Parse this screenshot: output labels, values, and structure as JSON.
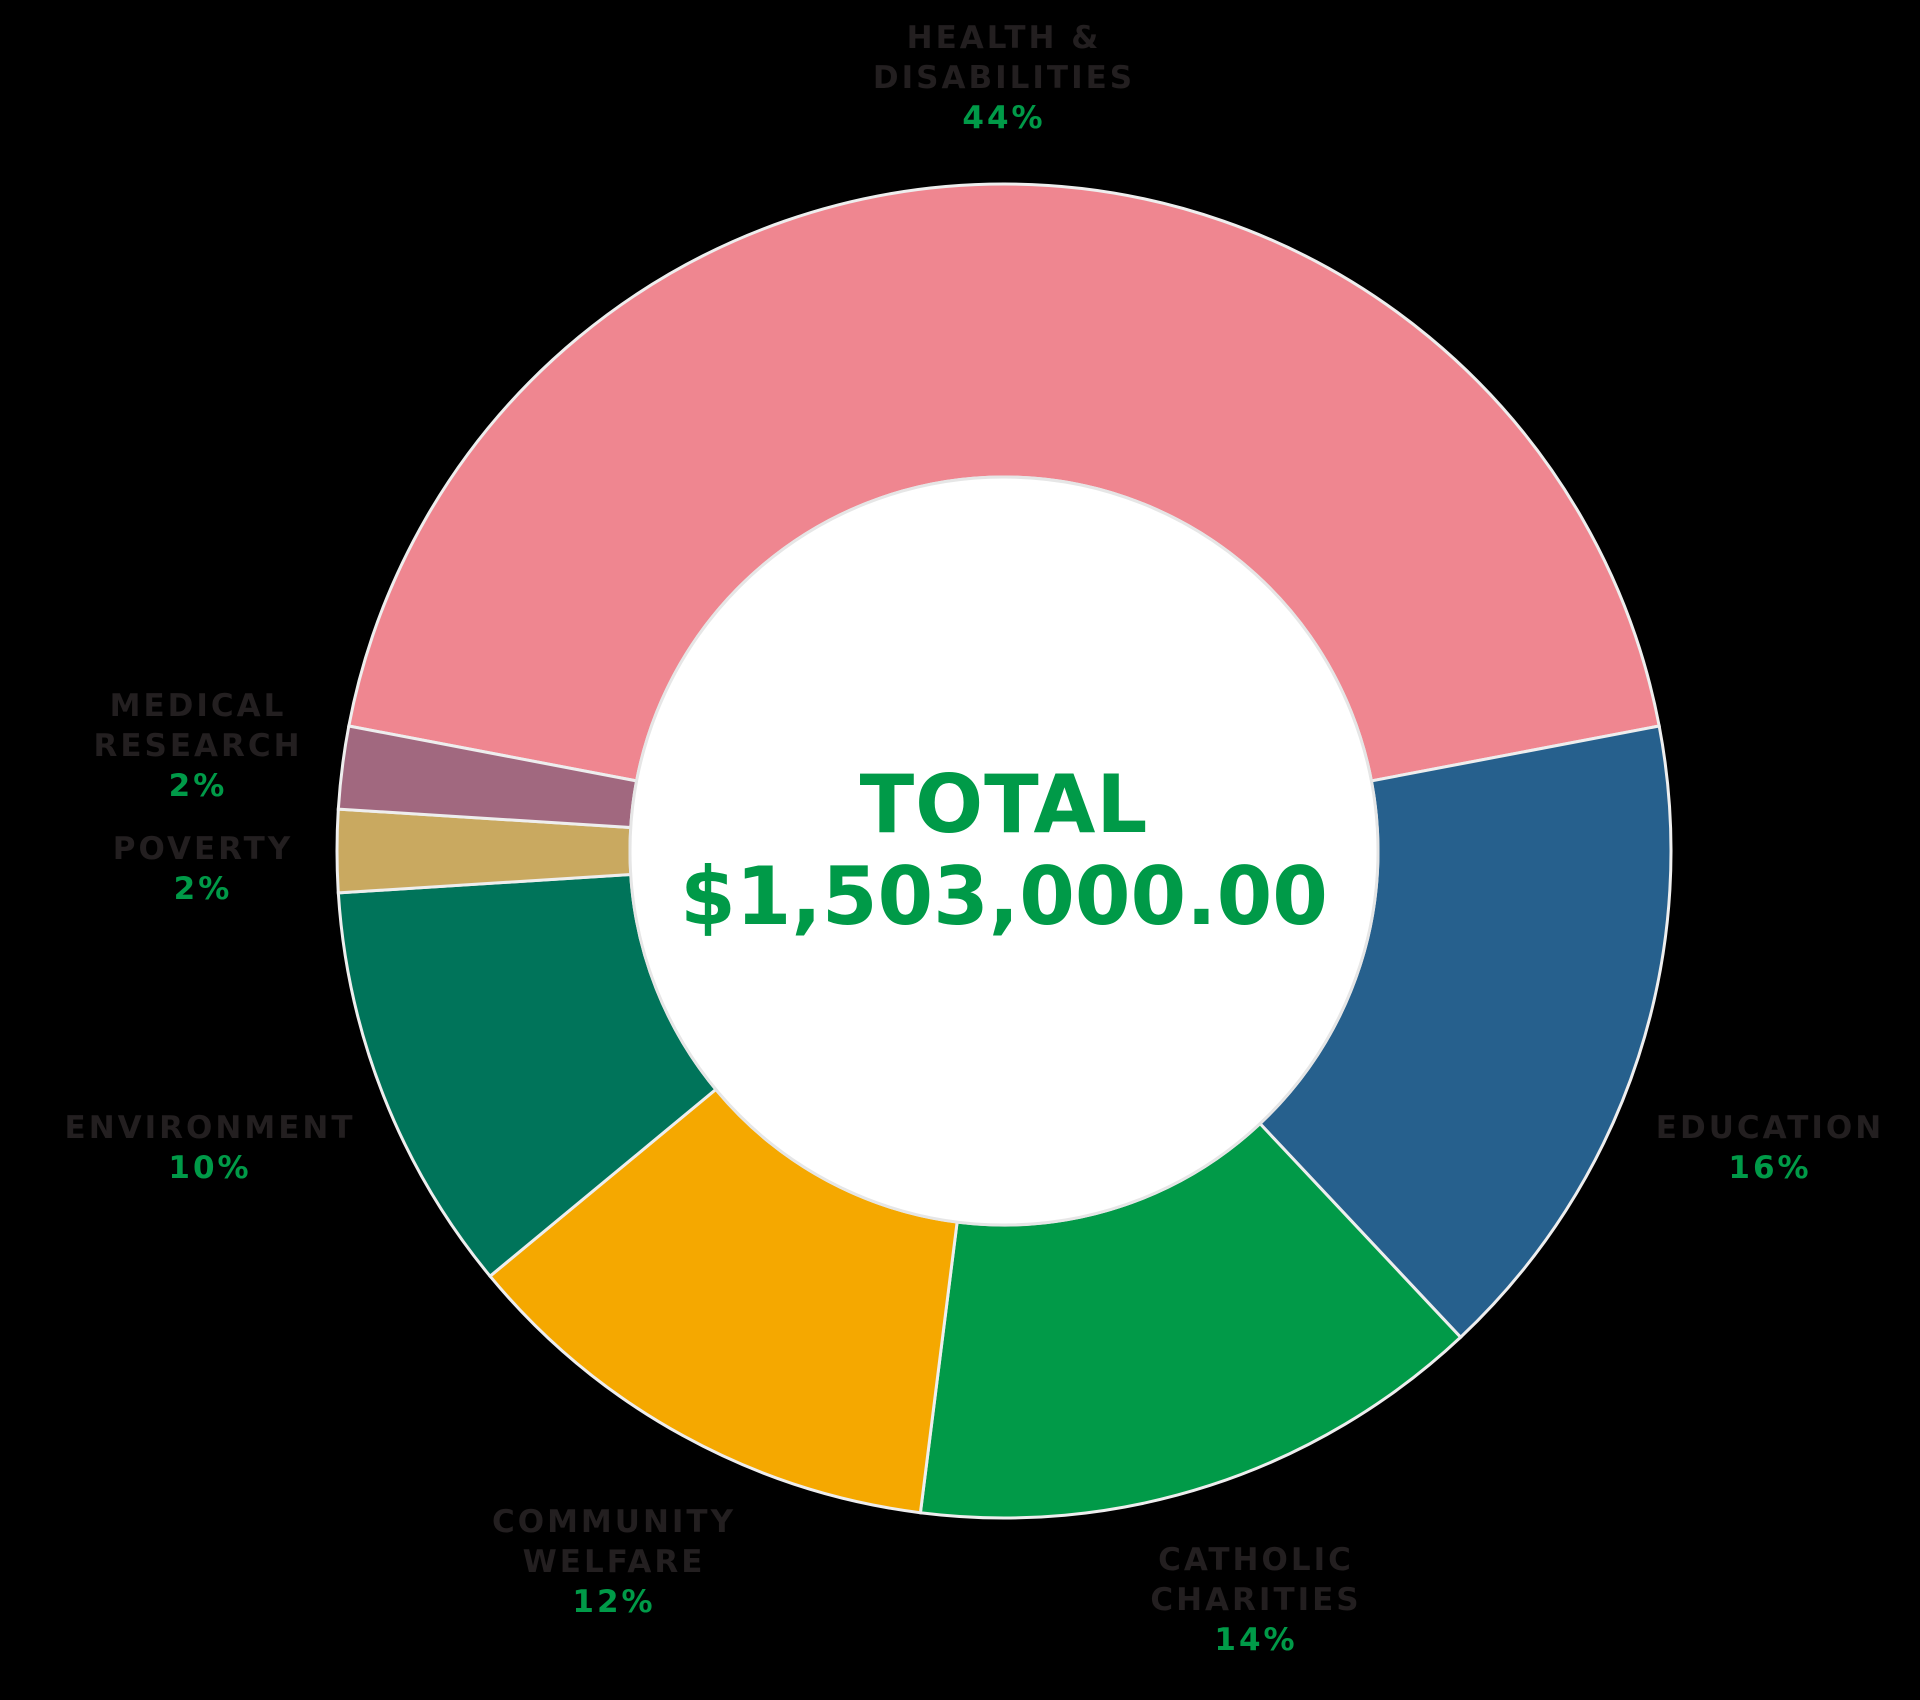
{
  "chart_data": {
    "type": "pie",
    "variant": "donut",
    "title": "",
    "center_label": "TOTAL",
    "center_value": "$1,503,000.00",
    "categories": [
      "Health & Disabilities",
      "Education",
      "Catholic Charities",
      "Community Welfare",
      "Environment",
      "Poverty",
      "Medical Research"
    ],
    "values": [
      44,
      16,
      14,
      12,
      10,
      2,
      2
    ],
    "unit": "%",
    "colors": [
      "#ef8690",
      "#26608d",
      "#019a48",
      "#f5a800",
      "#00745a",
      "#c9a960",
      "#a1687f"
    ],
    "legend_position": "labels-outside"
  },
  "center": {
    "line1": "TOTAL",
    "line2": "$1,503,000.00"
  },
  "labels": [
    {
      "name": "HEALTH &\nDISABILITIES",
      "name_l1": "HEALTH &",
      "name_l2": "DISABILITIES",
      "pct": "44%"
    },
    {
      "name_l1": "EDUCATION",
      "pct": "16%"
    },
    {
      "name_l1": "CATHOLIC",
      "name_l2": "CHARITIES",
      "pct": "14%"
    },
    {
      "name_l1": "COMMUNITY",
      "name_l2": "WELFARE",
      "pct": "12%"
    },
    {
      "name_l1": "ENVIRONMENT",
      "pct": "10%"
    },
    {
      "name_l1": "POVERTY",
      "pct": "2%"
    },
    {
      "name_l1": "MEDICAL",
      "name_l2": "RESEARCH",
      "pct": "2%"
    }
  ],
  "colors": {
    "text": "#231f20",
    "accent": "#009a48",
    "stroke": "#eeeeee",
    "background": "#000000"
  }
}
